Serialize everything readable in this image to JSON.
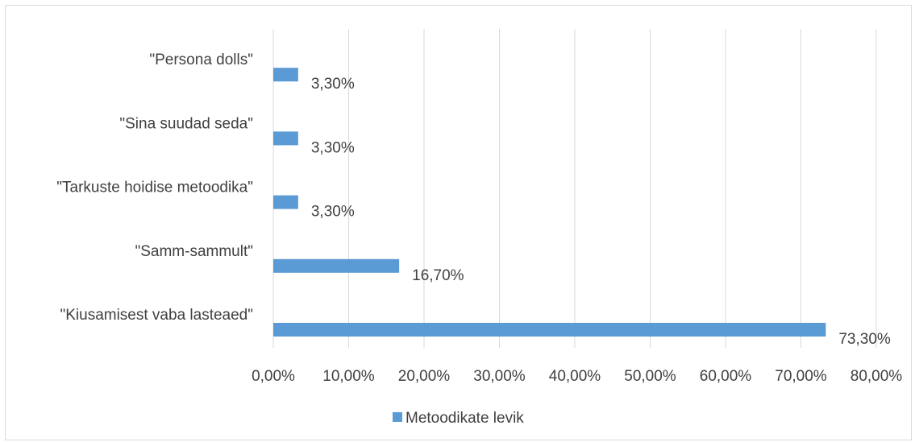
{
  "chart_data": {
    "type": "bar",
    "orientation": "horizontal",
    "categories": [
      "\"Kiusamisest vaba lasteaed\"",
      "\"Samm-sammult\"",
      "\"Tarkuste hoidise metoodika\"",
      "\"Sina suudad seda\"",
      "\"Persona dolls\""
    ],
    "series": [
      {
        "name": "Metoodikate levik",
        "values": [
          73.3,
          16.7,
          3.3,
          3.3,
          3.3
        ],
        "labels": [
          "73,30%",
          "16,70%",
          "3,30%",
          "3,30%",
          "3,30%"
        ],
        "color": "#5b9bd5"
      }
    ],
    "xlim": [
      0,
      80
    ],
    "xticks": [
      0,
      10,
      20,
      30,
      40,
      50,
      60,
      70,
      80
    ],
    "xtick_labels": [
      "0,00%",
      "10,00%",
      "20,00%",
      "30,00%",
      "40,00%",
      "50,00%",
      "60,00%",
      "70,00%",
      "80,00%"
    ],
    "grid": "vertical",
    "gridColor": "#d9d9d9",
    "legend": "bottom"
  }
}
